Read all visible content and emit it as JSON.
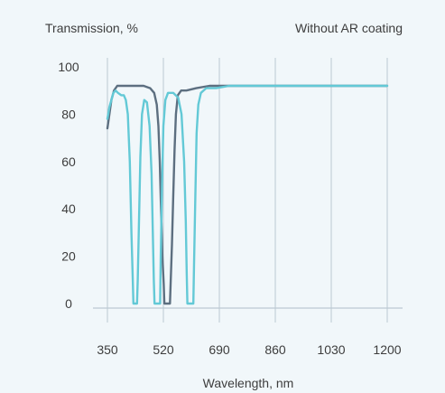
{
  "chart_data": {
    "type": "line",
    "title_left": "Transmission, %",
    "title_right": "Without AR coating",
    "xlabel": "Wavelength, nm",
    "ylabel": "Transmission, %",
    "xlim": [
      320,
      1230
    ],
    "ylim": [
      0,
      100
    ],
    "x_ticks": [
      350,
      520,
      690,
      860,
      1030,
      1200
    ],
    "y_ticks": [
      0,
      20,
      40,
      60,
      80,
      100
    ],
    "grid": "vertical",
    "colors": {
      "dark": "#5d6f80",
      "light": "#63c9d6",
      "axis": "#bcc9d3",
      "text": "#3d3d3d",
      "background": "#f1f7fa"
    },
    "series": [
      {
        "color": "#5d6f80",
        "points": [
          [
            350,
            74
          ],
          [
            356,
            80
          ],
          [
            362,
            86
          ],
          [
            370,
            90
          ],
          [
            380,
            92
          ],
          [
            400,
            92
          ],
          [
            430,
            92
          ],
          [
            460,
            92
          ],
          [
            480,
            91
          ],
          [
            492,
            89
          ],
          [
            500,
            84
          ],
          [
            505,
            75
          ],
          [
            509,
            60
          ],
          [
            513,
            40
          ],
          [
            517,
            20
          ],
          [
            521,
            8
          ],
          [
            523,
            0
          ],
          [
            540,
            0
          ],
          [
            542,
            8
          ],
          [
            546,
            25
          ],
          [
            550,
            45
          ],
          [
            554,
            65
          ],
          [
            558,
            80
          ],
          [
            564,
            88
          ],
          [
            574,
            90
          ],
          [
            590,
            90
          ],
          [
            620,
            91
          ],
          [
            660,
            92
          ],
          [
            720,
            92
          ],
          [
            800,
            92
          ],
          [
            900,
            92
          ],
          [
            1000,
            92
          ],
          [
            1100,
            92
          ],
          [
            1200,
            92
          ]
        ]
      },
      {
        "color": "#63c9d6",
        "points": [
          [
            350,
            78
          ],
          [
            356,
            83
          ],
          [
            362,
            86
          ],
          [
            368,
            89
          ],
          [
            375,
            90
          ],
          [
            382,
            89
          ],
          [
            392,
            88
          ],
          [
            400,
            88
          ],
          [
            406,
            86
          ],
          [
            412,
            80
          ],
          [
            418,
            60
          ],
          [
            423,
            30
          ],
          [
            427,
            10
          ],
          [
            429,
            0
          ],
          [
            440,
            0
          ],
          [
            442,
            10
          ],
          [
            446,
            35
          ],
          [
            450,
            62
          ],
          [
            455,
            80
          ],
          [
            462,
            86
          ],
          [
            470,
            85
          ],
          [
            478,
            75
          ],
          [
            484,
            55
          ],
          [
            488,
            30
          ],
          [
            491,
            10
          ],
          [
            493,
            0
          ],
          [
            510,
            0
          ],
          [
            512,
            20
          ],
          [
            516,
            50
          ],
          [
            520,
            75
          ],
          [
            526,
            86
          ],
          [
            534,
            89
          ],
          [
            550,
            89
          ],
          [
            565,
            87
          ],
          [
            575,
            80
          ],
          [
            583,
            60
          ],
          [
            588,
            35
          ],
          [
            591,
            12
          ],
          [
            593,
            0
          ],
          [
            611,
            0
          ],
          [
            613,
            15
          ],
          [
            617,
            45
          ],
          [
            621,
            72
          ],
          [
            626,
            84
          ],
          [
            634,
            89
          ],
          [
            650,
            91
          ],
          [
            680,
            91
          ],
          [
            720,
            92
          ],
          [
            800,
            92
          ],
          [
            900,
            92
          ],
          [
            1000,
            92
          ],
          [
            1100,
            92
          ],
          [
            1200,
            92
          ]
        ]
      }
    ]
  }
}
